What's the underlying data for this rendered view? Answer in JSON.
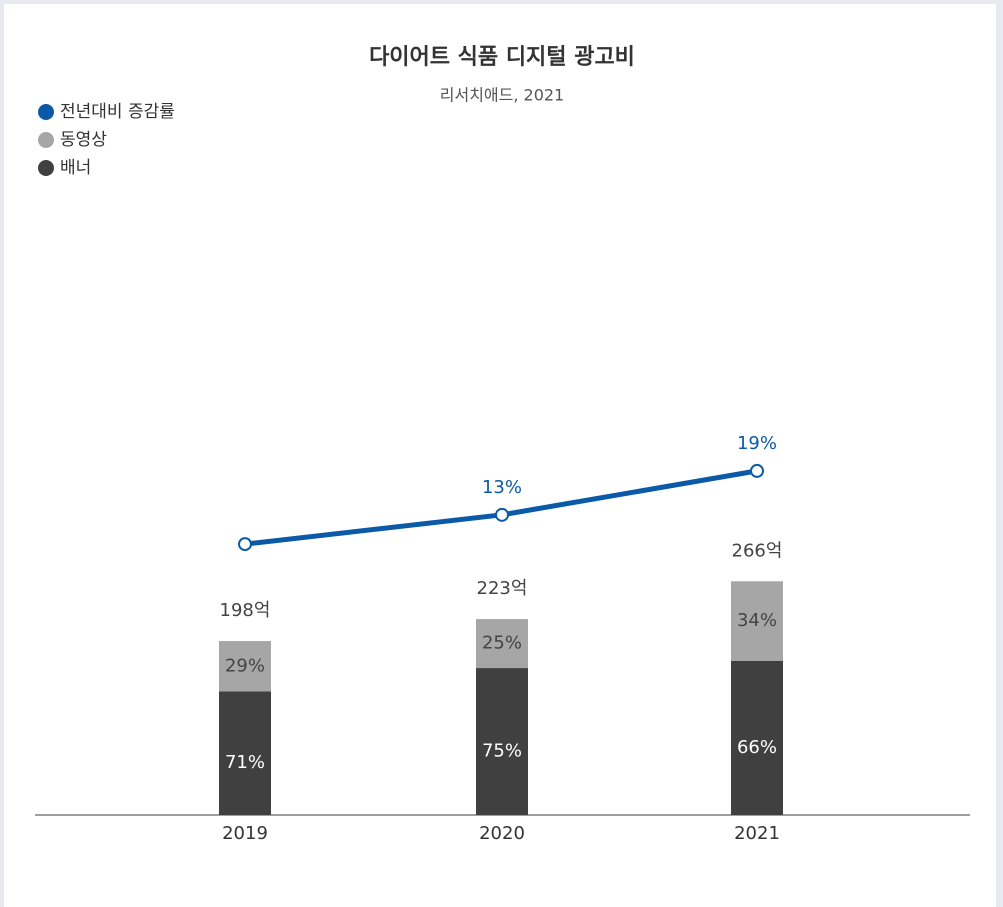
{
  "chart_data": {
    "type": "bar",
    "title": "다이어트 식품 디지털 광고비",
    "subtitle": "리서치애드, 2021",
    "categories": [
      "2019",
      "2020",
      "2021"
    ],
    "totals": {
      "values": [
        198,
        223,
        266
      ],
      "value_labels": [
        "198억",
        "223억",
        "266억"
      ]
    },
    "series": [
      {
        "name": "배너",
        "color": "#404040",
        "values": [
          71,
          75,
          66
        ],
        "value_labels": [
          "71%",
          "75%",
          "66%"
        ]
      },
      {
        "name": "동영상",
        "color": "#a6a6a6",
        "values": [
          29,
          25,
          34
        ],
        "value_labels": [
          "29%",
          "25%",
          "34%"
        ]
      },
      {
        "name": "전년대비 증감률",
        "type": "line",
        "axis": "y2",
        "color": "#0a5aa8",
        "values": [
          9,
          13,
          19
        ],
        "value_labels": [
          null,
          "13%",
          "19%"
        ]
      }
    ],
    "ylim": [
      0,
      700
    ],
    "y2lim": [
      -28,
      56
    ],
    "legend": "top-left"
  }
}
